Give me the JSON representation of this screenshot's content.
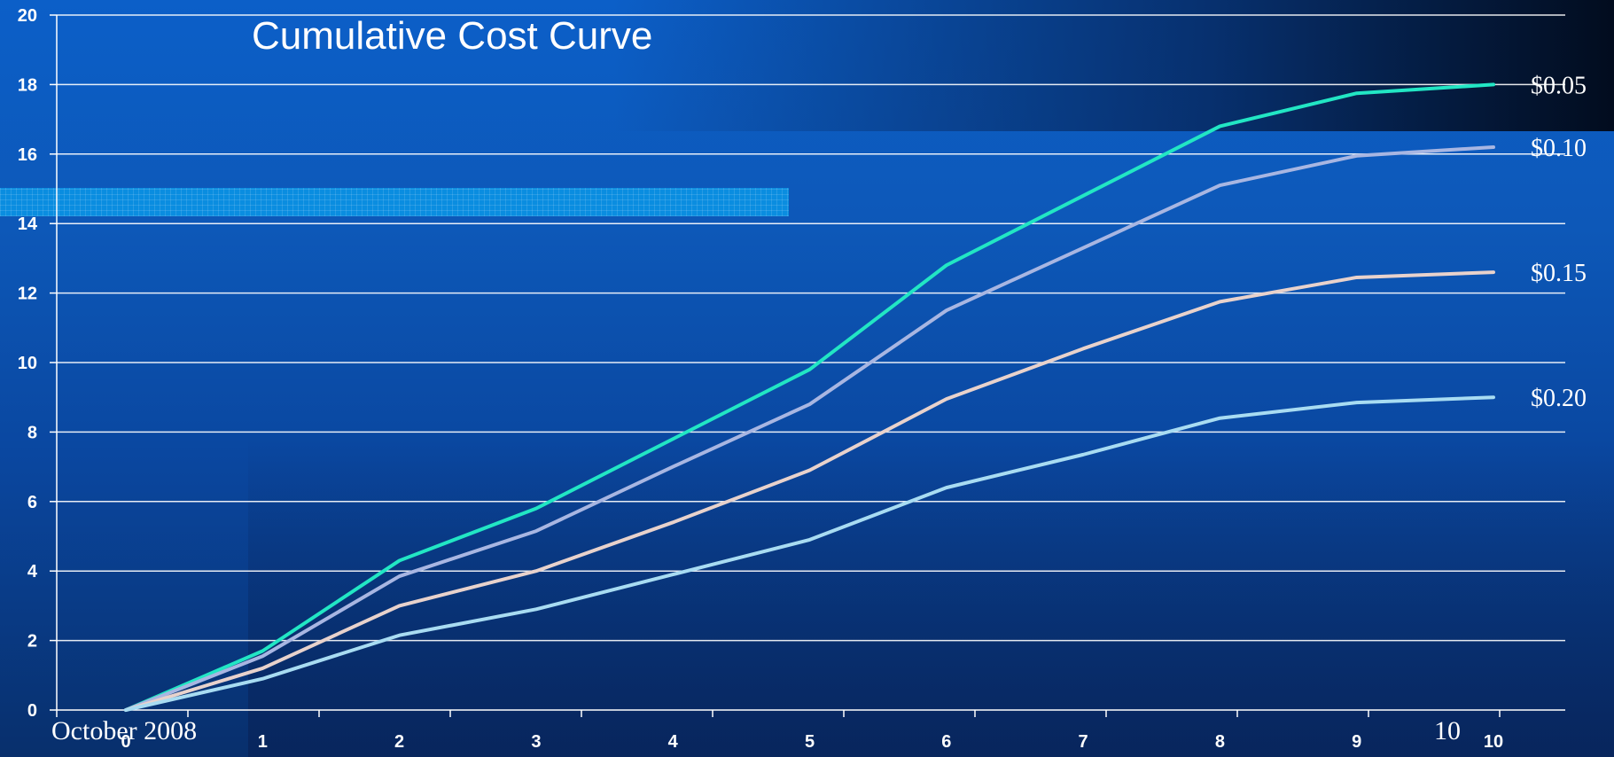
{
  "chart_data": {
    "type": "line",
    "title": "Cumulative Cost Curve",
    "xlabel": "",
    "ylabel": "",
    "x": [
      0,
      1,
      2,
      3,
      4,
      5,
      6,
      7,
      8,
      9,
      10
    ],
    "xlim": [
      0,
      10.5
    ],
    "ylim": [
      0,
      20
    ],
    "yticks": [
      0,
      2,
      4,
      6,
      8,
      10,
      12,
      14,
      16,
      18,
      20
    ],
    "xticks": [
      0,
      1,
      2,
      3,
      4,
      5,
      6,
      7,
      8,
      9,
      10
    ],
    "grid": "horizontal",
    "series": [
      {
        "name": "$0.05",
        "color": "#22e6c4",
        "x": [
          0,
          1,
          2,
          3,
          4,
          5,
          6,
          7,
          8,
          9,
          10
        ],
        "values": [
          0,
          1.7,
          4.3,
          5.8,
          7.8,
          9.8,
          12.8,
          14.8,
          16.8,
          17.75,
          18.0
        ]
      },
      {
        "name": "$0.10",
        "color": "#a8b6e2",
        "x": [
          0,
          1,
          2,
          3,
          4,
          5,
          6,
          7,
          8,
          9,
          10
        ],
        "values": [
          0,
          1.55,
          3.85,
          5.15,
          7.0,
          8.8,
          11.5,
          13.3,
          15.1,
          15.95,
          16.2
        ]
      },
      {
        "name": "$0.15",
        "color": "#e8d2cc",
        "x": [
          0,
          1,
          2,
          3,
          4,
          5,
          6,
          7,
          8,
          9,
          10
        ],
        "values": [
          0,
          1.2,
          3.0,
          4.0,
          5.4,
          6.9,
          8.95,
          10.4,
          11.75,
          12.45,
          12.6
        ]
      },
      {
        "name": "$0.20",
        "color": "#a8dcf2",
        "x": [
          0,
          1,
          2,
          3,
          4,
          5,
          6,
          7,
          8,
          9,
          10
        ],
        "values": [
          0,
          0.9,
          2.15,
          2.9,
          3.9,
          4.9,
          6.4,
          7.35,
          8.4,
          8.85,
          9.0
        ]
      }
    ]
  },
  "footer": {
    "date": "October 2008",
    "page_number": "10"
  }
}
